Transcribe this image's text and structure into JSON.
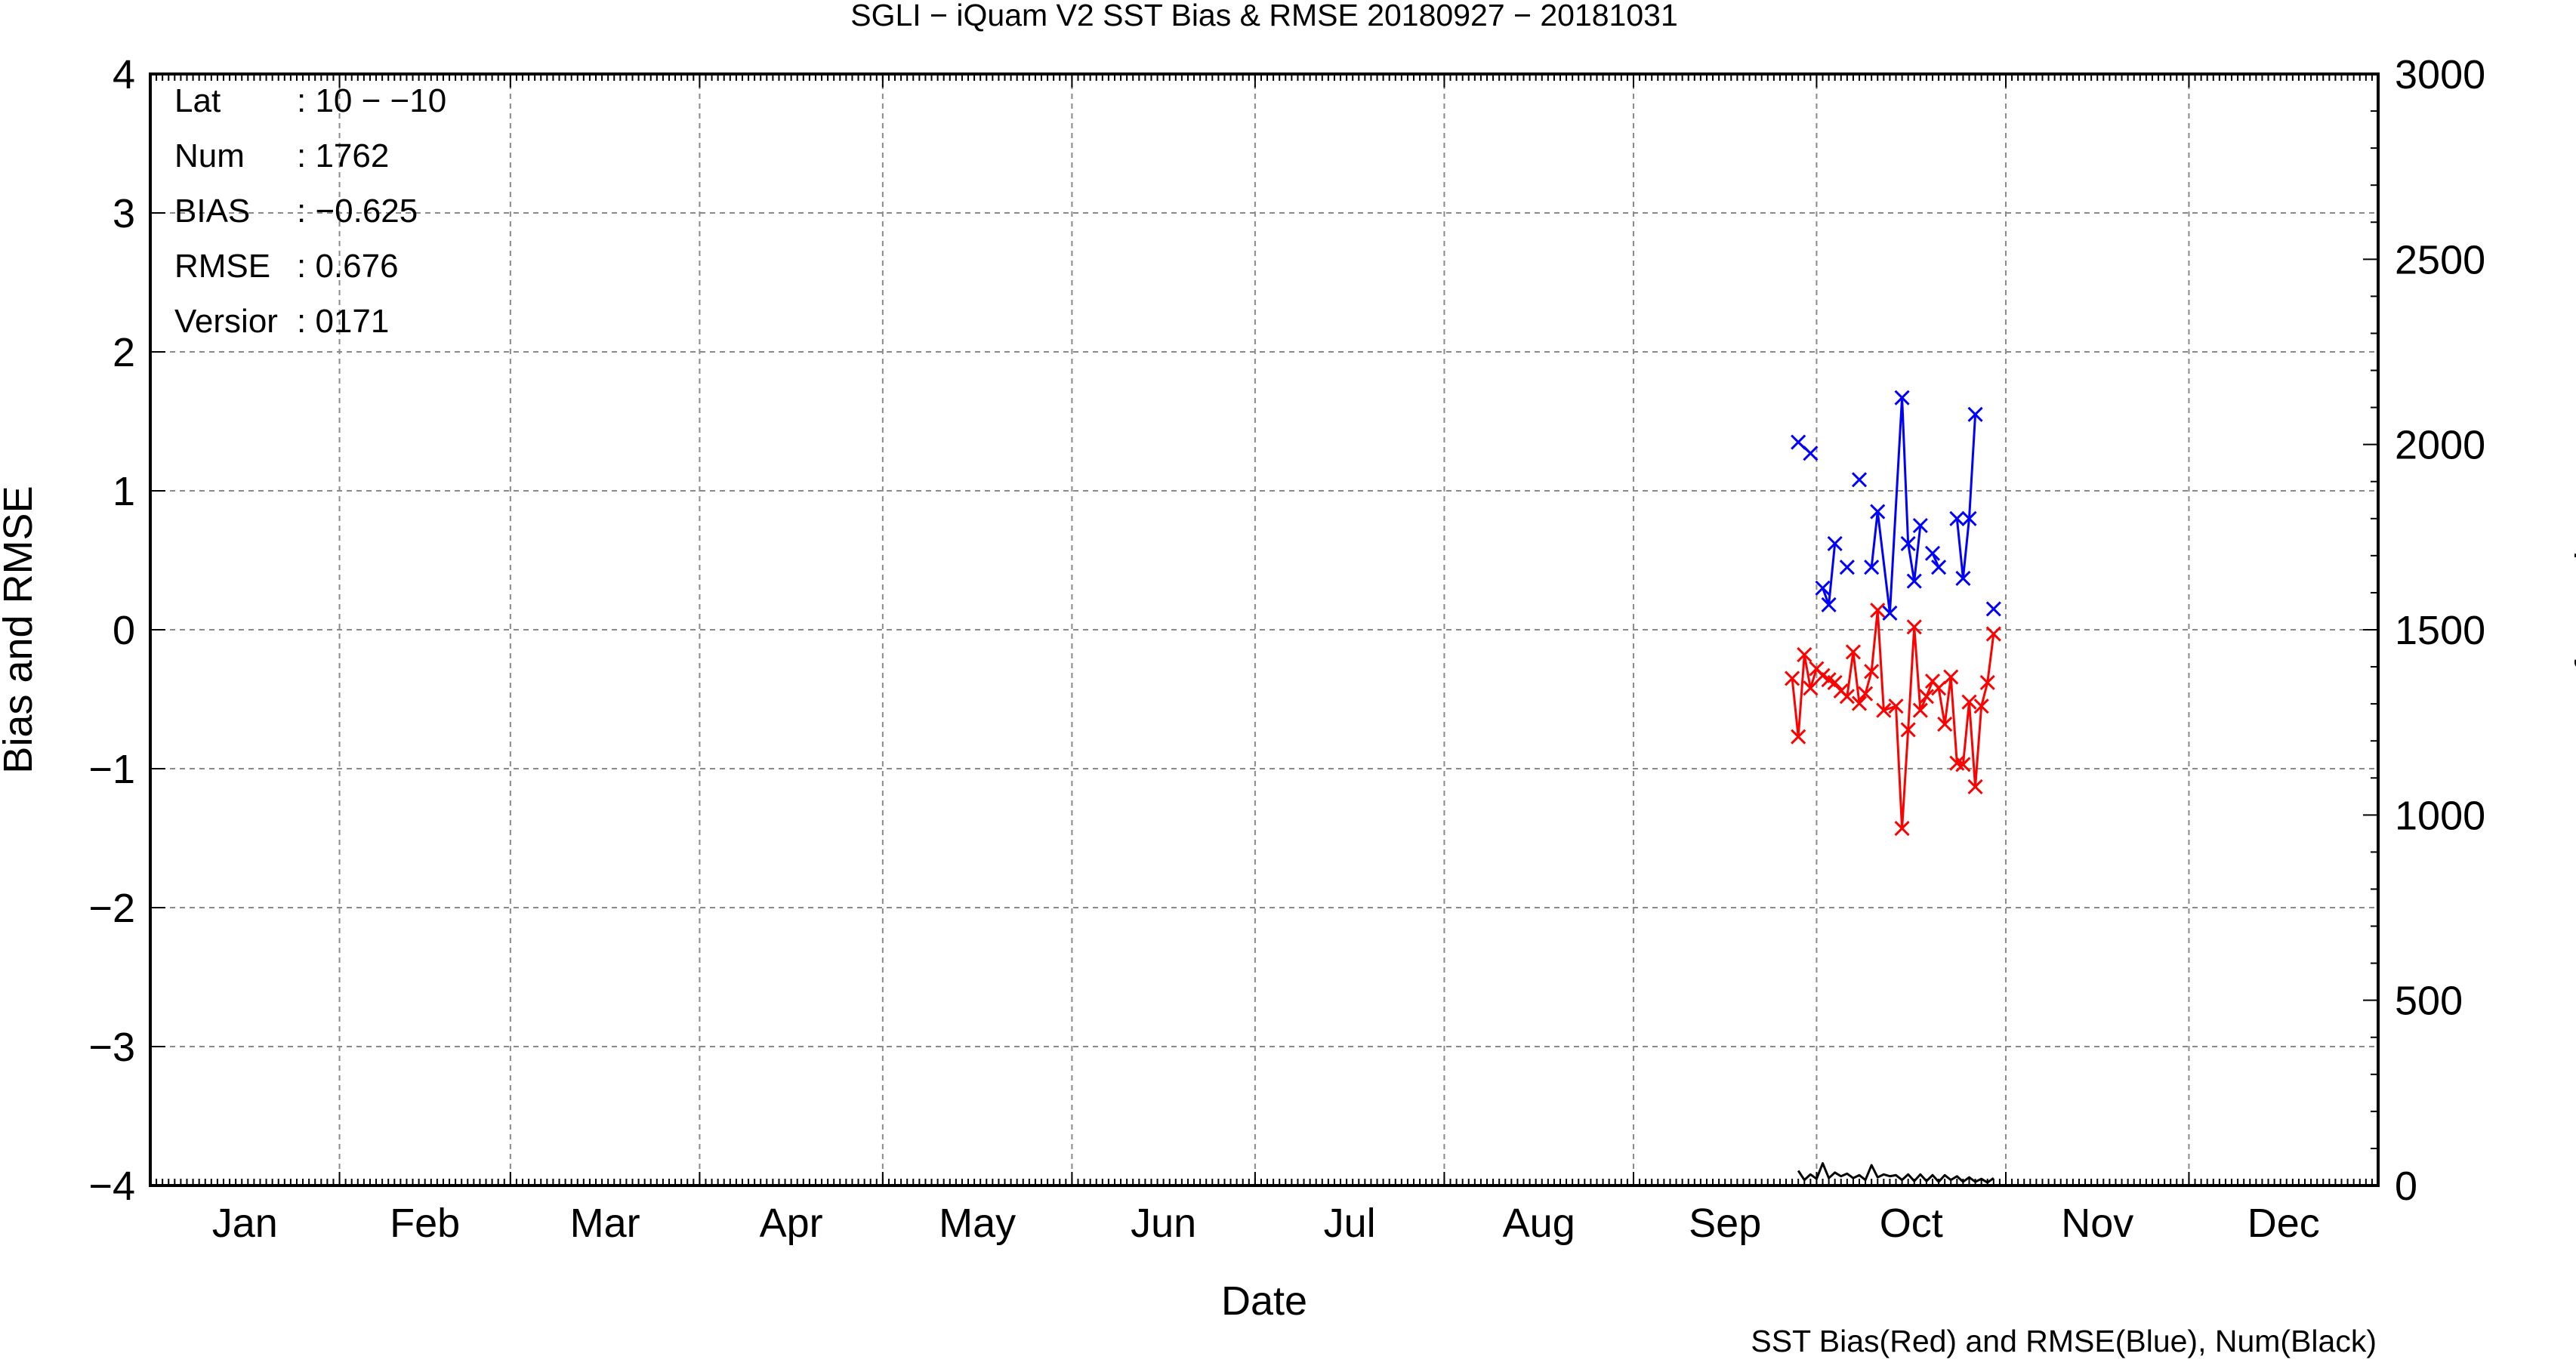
{
  "chart_data": {
    "type": "line",
    "title": "SGLI − iQuam V2 SST Bias & RMSE 20180927 − 20181031",
    "xlabel": "Date",
    "ylabel": "Bias and RMSE",
    "y2label": "Num of Match−up",
    "footnote": "SST Bias(Red) and RMSE(Blue), Num(Black)",
    "categories": [
      "Jan",
      "Feb",
      "Mar",
      "Apr",
      "May",
      "Jun",
      "Jul",
      "Aug",
      "Sep",
      "Oct",
      "Nov",
      "Dec"
    ],
    "x_axis": {
      "type": "date",
      "range": [
        "2018-01-01",
        "2018-12-31"
      ]
    },
    "ylim": [
      -4,
      4
    ],
    "yticks": [
      "−4",
      "−3",
      "−2",
      "−1",
      "0",
      "1",
      "2",
      "3",
      "4"
    ],
    "y2lim": [
      0,
      3000
    ],
    "y2ticks": [
      "0",
      "500",
      "1000",
      "1500",
      "2000",
      "2500",
      "3000"
    ],
    "grid": true,
    "stats": [
      {
        "label": "Lat",
        "value": ": 10 − −10"
      },
      {
        "label": "Num",
        "value": ": 1762"
      },
      {
        "label": "BIAS",
        "value": ": −0.625"
      },
      {
        "label": "RMSE",
        "value": ": 0.676"
      },
      {
        "label": "Versior",
        "value": ": 0171"
      }
    ],
    "series": [
      {
        "name": "SST Bias",
        "color": "#ff0000",
        "marker": "x",
        "axis": "left",
        "points": [
          [
            "2018-09-27",
            -0.35
          ],
          [
            "2018-09-28",
            -0.77
          ],
          [
            "2018-09-29",
            -0.18
          ],
          [
            "2018-09-30",
            -0.42
          ],
          [
            "2018-10-01",
            -0.28
          ],
          [
            "2018-10-02",
            -0.33
          ],
          [
            "2018-10-03",
            -0.36
          ],
          [
            "2018-10-04",
            -0.38
          ],
          [
            "2018-10-05",
            -0.44
          ],
          [
            "2018-10-06",
            -0.48
          ],
          [
            "2018-10-07",
            -0.16
          ],
          [
            "2018-10-08",
            -0.53
          ],
          [
            "2018-10-09",
            -0.46
          ],
          [
            "2018-10-10",
            -0.3
          ],
          [
            "2018-10-11",
            0.14
          ],
          [
            "2018-10-12",
            -0.58
          ],
          [
            "2018-10-14",
            -0.55
          ],
          [
            "2018-10-15",
            -1.43
          ],
          [
            "2018-10-16",
            -0.72
          ],
          [
            "2018-10-17",
            0.02
          ],
          [
            "2018-10-18",
            -0.58
          ],
          [
            "2018-10-19",
            -0.48
          ],
          [
            "2018-10-20",
            -0.37
          ],
          [
            "2018-10-21",
            -0.42
          ],
          [
            "2018-10-22",
            -0.68
          ],
          [
            "2018-10-23",
            -0.34
          ],
          [
            "2018-10-24",
            -0.96
          ],
          [
            "2018-10-25",
            -0.97
          ],
          [
            "2018-10-26",
            -0.52
          ],
          [
            "2018-10-27",
            -1.13
          ],
          [
            "2018-10-28",
            -0.55
          ],
          [
            "2018-10-29",
            -0.38
          ],
          [
            "2018-10-30",
            -0.03
          ]
        ]
      },
      {
        "name": "RMSE",
        "color": "#0000ff",
        "marker": "x",
        "axis": "left",
        "points": [
          [
            "2018-09-28",
            1.35
          ],
          [
            "2018-09-30",
            1.27
          ],
          null,
          [
            "2018-10-02",
            0.3
          ],
          [
            "2018-10-03",
            0.18
          ],
          [
            "2018-10-04",
            0.62
          ],
          null,
          [
            "2018-10-06",
            0.45
          ],
          null,
          [
            "2018-10-08",
            1.08
          ],
          null,
          [
            "2018-10-10",
            0.45
          ],
          [
            "2018-10-11",
            0.85
          ],
          [
            "2018-10-13",
            0.12
          ],
          [
            "2018-10-15",
            1.67
          ],
          [
            "2018-10-16",
            0.62
          ],
          [
            "2018-10-17",
            0.35
          ],
          [
            "2018-10-18",
            0.75
          ],
          null,
          [
            "2018-10-20",
            0.55
          ],
          [
            "2018-10-21",
            0.45
          ],
          null,
          [
            "2018-10-24",
            0.8
          ],
          [
            "2018-10-25",
            0.37
          ],
          [
            "2018-10-26",
            0.8
          ],
          [
            "2018-10-27",
            1.55
          ],
          null,
          [
            "2018-10-30",
            0.15
          ]
        ]
      },
      {
        "name": "Num",
        "color": "#000000",
        "marker": "none",
        "axis": "right",
        "points": [
          [
            "2018-09-28",
            40
          ],
          [
            "2018-09-29",
            15
          ],
          [
            "2018-09-30",
            30
          ],
          [
            "2018-10-01",
            18
          ],
          [
            "2018-10-02",
            60
          ],
          [
            "2018-10-03",
            20
          ],
          [
            "2018-10-04",
            35
          ],
          [
            "2018-10-05",
            25
          ],
          [
            "2018-10-06",
            32
          ],
          [
            "2018-10-07",
            20
          ],
          [
            "2018-10-08",
            28
          ],
          [
            "2018-10-09",
            15
          ],
          [
            "2018-10-10",
            55
          ],
          [
            "2018-10-11",
            22
          ],
          [
            "2018-10-12",
            30
          ],
          [
            "2018-10-13",
            25
          ],
          [
            "2018-10-14",
            28
          ],
          [
            "2018-10-15",
            15
          ],
          [
            "2018-10-16",
            30
          ],
          [
            "2018-10-17",
            12
          ],
          [
            "2018-10-18",
            30
          ],
          [
            "2018-10-19",
            12
          ],
          [
            "2018-10-20",
            28
          ],
          [
            "2018-10-21",
            10
          ],
          [
            "2018-10-22",
            28
          ],
          [
            "2018-10-23",
            15
          ],
          [
            "2018-10-24",
            25
          ],
          [
            "2018-10-25",
            10
          ],
          [
            "2018-10-26",
            22
          ],
          [
            "2018-10-27",
            10
          ],
          [
            "2018-10-28",
            18
          ],
          [
            "2018-10-29",
            8
          ],
          [
            "2018-10-30",
            20
          ]
        ]
      }
    ]
  }
}
